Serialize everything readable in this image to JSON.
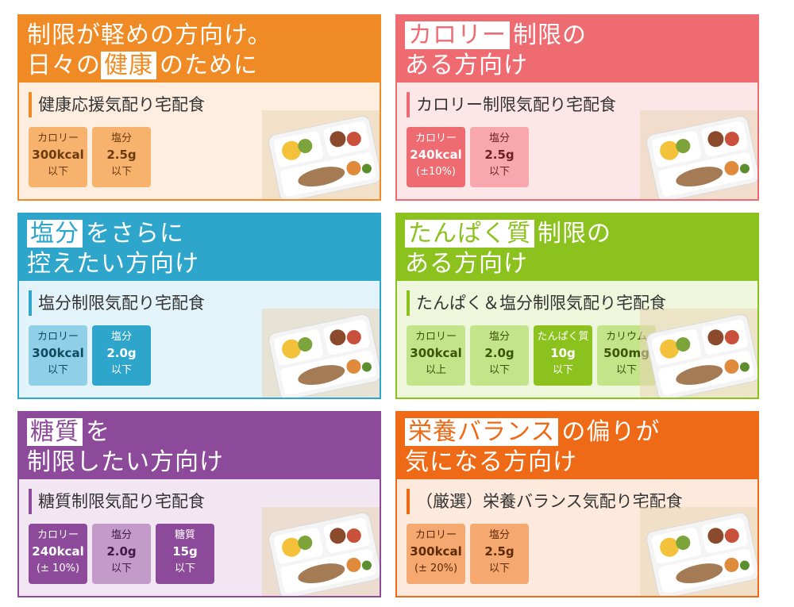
{
  "cards": [
    {
      "theme": {
        "border": "#f08a24",
        "head": "#f08a24",
        "bg": "#fdeee0",
        "accent": "#f08a24",
        "tile": "#f7b26d",
        "tileText": "#6b3b10"
      },
      "head_lines": [
        "制限が軽めの方向け。",
        {
          "pre": "日々の",
          "hl": "健康",
          "post": "のために"
        }
      ],
      "subtitle": "健康応援気配り宅配食",
      "tiles": [
        {
          "label": "カロリー",
          "value": "300kcal",
          "note": "以下"
        },
        {
          "label": "塩分",
          "value": "2.5g",
          "note": "以下"
        }
      ]
    },
    {
      "theme": {
        "border": "#ef6b72",
        "head": "#ef6b72",
        "bg": "#fde6e8",
        "accent": "#ef6b72",
        "tile": "#f8a8ad",
        "tileText": "#6b1f24"
      },
      "head_lines": [
        {
          "pre": "",
          "hl": "カロリー",
          "post": "制限の"
        },
        "ある方向け"
      ],
      "subtitle": "カロリー制限気配り宅配食",
      "tiles": [
        {
          "label": "カロリー",
          "value": "240kcal",
          "note": "(±10%)",
          "strong": true
        },
        {
          "label": "塩分",
          "value": "2.5g",
          "note": "以下"
        }
      ]
    },
    {
      "theme": {
        "border": "#2ea6cc",
        "head": "#2ea6cc",
        "bg": "#e3f3fa",
        "accent": "#2ea6cc",
        "tile": "#8fd0e8",
        "tileText": "#0f4a5e"
      },
      "head_lines": [
        {
          "pre": "",
          "hl": "塩分",
          "post": "をさらに"
        },
        "控えたい方向け"
      ],
      "subtitle": "塩分制限気配り宅配食",
      "tiles": [
        {
          "label": "カロリー",
          "value": "300kcal",
          "note": "以下"
        },
        {
          "label": "塩分",
          "value": "2.0g",
          "note": "以下",
          "strong": true
        }
      ]
    },
    {
      "theme": {
        "border": "#8cc21e",
        "head": "#8cc21e",
        "bg": "#eef7dc",
        "accent": "#8cc21e",
        "tile": "#c4e48a",
        "tileText": "#3a5408"
      },
      "head_lines": [
        {
          "pre": "",
          "hl": "たんぱく質",
          "post": "制限の"
        },
        "ある方向け"
      ],
      "subtitle": "たんぱく＆塩分制限気配り宅配食",
      "tiles": [
        {
          "label": "カロリー",
          "value": "300kcal",
          "note": "以上"
        },
        {
          "label": "塩分",
          "value": "2.0g",
          "note": "以下"
        },
        {
          "label": "たんぱく質",
          "value": "10g",
          "note": "以下",
          "strong": true
        },
        {
          "label": "カリウム",
          "value": "500mg",
          "note": "以下"
        }
      ]
    },
    {
      "theme": {
        "border": "#8e4a9a",
        "head": "#8e4a9a",
        "bg": "#f2e6f3",
        "accent": "#8e4a9a",
        "tile": "#c29bc9",
        "tileText": "#3e1a44"
      },
      "head_lines": [
        {
          "pre": "",
          "hl": "糖質",
          "post": "を"
        },
        "制限したい方向け"
      ],
      "subtitle": "糖質制限気配り宅配食",
      "tiles": [
        {
          "label": "カロリー",
          "value": "240kcal",
          "note": "(± 10%)",
          "strong": true
        },
        {
          "label": "塩分",
          "value": "2.0g",
          "note": "以下"
        },
        {
          "label": "糖質",
          "value": "15g",
          "note": "以下",
          "strong": true
        }
      ]
    },
    {
      "theme": {
        "border": "#ee6a16",
        "head": "#ee6a16",
        "bg": "#fdeadd",
        "accent": "#ee6a16",
        "tile": "#f5a86f",
        "tileText": "#5e2a08"
      },
      "head_lines": [
        {
          "pre": "",
          "hl": "栄養バランス",
          "post": "の偏りが"
        },
        "気になる方向け"
      ],
      "subtitle": "（厳選）栄養バランス気配り宅配食",
      "tiles": [
        {
          "label": "カロリー",
          "value": "300kcal",
          "note": "(± 20%)"
        },
        {
          "label": "塩分",
          "value": "2.5g",
          "note": "以下"
        }
      ]
    }
  ]
}
